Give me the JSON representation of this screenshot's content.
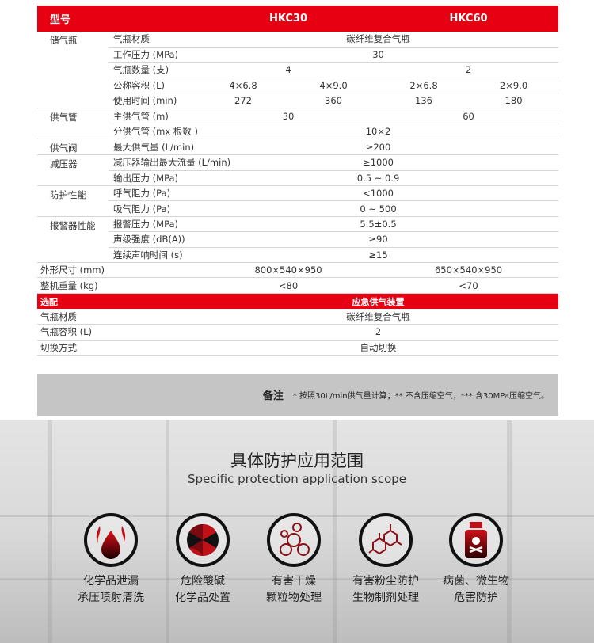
{
  "header": {
    "model": "型号",
    "hkc30": "HKC30",
    "hkc60": "HKC60"
  },
  "groups": [
    {
      "name": "储气瓶",
      "rows": [
        {
          "label": "气瓶材质",
          "span": "碳纤维复合气瓶"
        },
        {
          "label": "工作压力 (MPa)",
          "span": "30"
        },
        {
          "label": "气瓶数量 (支)",
          "pair": [
            "4",
            "2"
          ]
        },
        {
          "label": "公称容积 (L)",
          "quad": [
            "4×6.8",
            "4×9.0",
            "2×6.8",
            "2×9.0"
          ]
        },
        {
          "label": "使用时间 (min)",
          "quad": [
            "272",
            "360",
            "136",
            "180"
          ]
        }
      ]
    },
    {
      "name": "供气管",
      "rows": [
        {
          "label": "主供气管 (m)",
          "pair": [
            "30",
            "60"
          ]
        },
        {
          "label": "分供气管 (mx 根数 )",
          "span": "10×2"
        }
      ]
    },
    {
      "name": "供气阀",
      "rows": [
        {
          "label": "最大供气量 (L/min)",
          "span": "≥200"
        }
      ]
    },
    {
      "name": "减压器",
      "rows": [
        {
          "label": "减压器输出最大流量 (L/min)",
          "span": "≥1000"
        },
        {
          "label": "输出压力 (MPa)",
          "span": "0.5 ~ 0.9"
        }
      ]
    },
    {
      "name": "防护性能",
      "rows": [
        {
          "label": "呼气阻力 (Pa)",
          "span": "<1000"
        },
        {
          "label": "吸气阻力 (Pa)",
          "span": "0 ~ 500"
        }
      ]
    },
    {
      "name": "报警器性能",
      "rows": [
        {
          "label": "报警压力 (MPa)",
          "span": "5.5±0.5"
        },
        {
          "label": "声级强度 (dB(A))",
          "span": "≥90"
        },
        {
          "label": "连续声响时间 (s)",
          "span": "≥15"
        }
      ]
    }
  ],
  "wide_rows": [
    {
      "label": "外形尺寸 (mm)",
      "pair": [
        "800×540×950",
        "650×540×950"
      ]
    },
    {
      "label": "整机重量 (kg)",
      "pair": [
        "<80",
        "<70"
      ]
    }
  ],
  "option": {
    "label": "选配",
    "title": "应急供气装置",
    "rows": [
      {
        "label": "气瓶材质",
        "value": "碳纤维复合气瓶"
      },
      {
        "label": "气瓶容积 (L)",
        "value": "2"
      },
      {
        "label": "切换方式",
        "value": "自动切换"
      }
    ]
  },
  "note": {
    "label": "备注",
    "text": "* 按照30L/min供气量计算；** 不含压缩空气；*** 含30MPa压缩空气。"
  },
  "scope": {
    "title": "具体防护应用范围",
    "subtitle": "Specific protection application scope",
    "items": [
      {
        "icon": "flame-drop-icon",
        "lines": [
          "化学品泄漏",
          "承压喷射清洗"
        ]
      },
      {
        "icon": "radiation-icon",
        "lines": [
          "危险酸碱",
          "化学品处置"
        ]
      },
      {
        "icon": "particles-icon",
        "lines": [
          "有害干燥",
          "颗粒物处理"
        ]
      },
      {
        "icon": "molecule-icon",
        "lines": [
          "有害粉尘防护",
          "生物制剂处理"
        ]
      },
      {
        "icon": "poison-bottle-icon",
        "lines": [
          "病菌、微生物",
          "危害防护"
        ]
      }
    ]
  },
  "colors": {
    "accent": "#e60012",
    "note_bg": "#c5c5c5"
  }
}
